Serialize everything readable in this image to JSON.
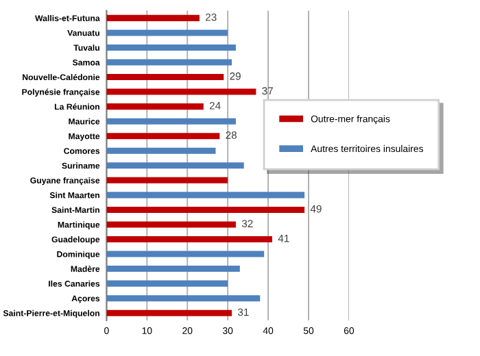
{
  "chart_data": {
    "type": "bar",
    "orientation": "horizontal",
    "categories": [
      "Wallis-et-Futuna",
      "Vanuatu",
      "Tuvalu",
      "Samoa",
      "Nouvelle-Calédonie",
      "Polynésie française",
      "La Réunion",
      "Maurice",
      "Mayotte",
      "Comores",
      "Suriname",
      "Guyane française",
      "Sint Maarten",
      "Saint-Martin",
      "Martinique",
      "Guadeloupe",
      "Dominique",
      "Madère",
      "Iles Canaries",
      "Açores",
      "Saint-Pierre-et-Miquelon"
    ],
    "series": [
      {
        "name": "Outre-mer français",
        "color": "#c00000",
        "values": [
          23,
          null,
          null,
          null,
          29,
          37,
          24,
          null,
          28,
          null,
          null,
          30,
          null,
          49,
          32,
          41,
          null,
          null,
          null,
          null,
          31
        ],
        "value_labels": [
          "23",
          null,
          null,
          null,
          "29",
          "37",
          "24",
          null,
          "28",
          null,
          null,
          null,
          null,
          "49",
          "32",
          "41",
          null,
          null,
          null,
          null,
          "31"
        ]
      },
      {
        "name": "Autres territoires insulaires",
        "color": "#4f81bd",
        "values": [
          null,
          30,
          32,
          31,
          null,
          null,
          null,
          32,
          null,
          27,
          34,
          null,
          49,
          null,
          null,
          null,
          39,
          33,
          30,
          38,
          null
        ]
      }
    ],
    "xlim": [
      0,
      60
    ],
    "xticks": [
      0,
      10,
      20,
      30,
      40,
      50,
      60
    ],
    "grid": "x",
    "legend": "right"
  }
}
